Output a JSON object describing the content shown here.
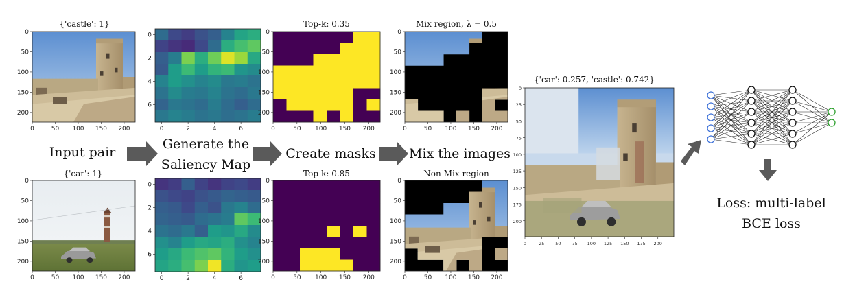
{
  "colors": {
    "viridis_dark": "#440154",
    "viridis_yellow": "#fde725",
    "arrow_gray": "#5a5a5a",
    "input_node_blue": "#3a6fd8",
    "output_node_green": "#2ca02c"
  },
  "panels": {
    "top_input": {
      "title": "{'castle': 1}",
      "content": "castle-photo"
    },
    "bottom_input": {
      "title": "{'car': 1}",
      "content": "car-field-photo"
    },
    "top_mask": {
      "title": "Top-k: 0.35"
    },
    "bottom_mask": {
      "title": "Top-k: 0.85"
    },
    "top_mix": {
      "title": "Mix region, λ = 0.5"
    },
    "bottom_mix": {
      "title": "Non-Mix region"
    },
    "result": {
      "title": "{'car': 0.257, 'castle': 0.742}"
    }
  },
  "axes": {
    "image_x_ticks": [
      "0",
      "50",
      "100",
      "150",
      "200"
    ],
    "image_y_ticks": [
      "0",
      "50",
      "100",
      "150",
      "200"
    ],
    "saliency_x_ticks": [
      "0",
      "2",
      "4",
      "6"
    ],
    "saliency_y_ticks": [
      "0",
      "2",
      "4",
      "6"
    ],
    "result_x_ticks": [
      "0",
      "25",
      "50",
      "75",
      "100",
      "125",
      "150",
      "175",
      "200"
    ],
    "result_y_ticks": [
      "0",
      "25",
      "50",
      "75",
      "100",
      "125",
      "150",
      "175",
      "200"
    ]
  },
  "steps": {
    "input_pair": "Input pair",
    "saliency_line1": "Generate the",
    "saliency_line2": "Saliency Map",
    "create_masks": "Create masks",
    "mix_images": "Mix the images"
  },
  "loss": {
    "line1": "Loss: multi-label",
    "line2": "BCE loss"
  },
  "saliency_top": [
    [
      0.35,
      0.22,
      0.18,
      0.25,
      0.3,
      0.45,
      0.58,
      0.62
    ],
    [
      0.2,
      0.15,
      0.12,
      0.22,
      0.35,
      0.62,
      0.7,
      0.75
    ],
    [
      0.3,
      0.42,
      0.8,
      0.62,
      0.78,
      0.95,
      0.85,
      0.6
    ],
    [
      0.28,
      0.55,
      0.68,
      0.55,
      0.65,
      0.68,
      0.52,
      0.48
    ],
    [
      0.45,
      0.55,
      0.5,
      0.45,
      0.48,
      0.4,
      0.42,
      0.38
    ],
    [
      0.38,
      0.48,
      0.42,
      0.4,
      0.45,
      0.38,
      0.35,
      0.4
    ],
    [
      0.32,
      0.4,
      0.38,
      0.35,
      0.42,
      0.35,
      0.3,
      0.35
    ],
    [
      0.4,
      0.45,
      0.42,
      0.38,
      0.4,
      0.36,
      0.38,
      0.42
    ]
  ],
  "saliency_bottom": [
    [
      0.15,
      0.18,
      0.3,
      0.2,
      0.15,
      0.2,
      0.22,
      0.18
    ],
    [
      0.25,
      0.22,
      0.2,
      0.25,
      0.28,
      0.32,
      0.3,
      0.28
    ],
    [
      0.3,
      0.28,
      0.22,
      0.3,
      0.25,
      0.4,
      0.45,
      0.35
    ],
    [
      0.32,
      0.3,
      0.28,
      0.35,
      0.38,
      0.42,
      0.75,
      0.68
    ],
    [
      0.38,
      0.35,
      0.4,
      0.3,
      0.55,
      0.52,
      0.6,
      0.48
    ],
    [
      0.5,
      0.45,
      0.55,
      0.6,
      0.58,
      0.62,
      0.5,
      0.45
    ],
    [
      0.55,
      0.6,
      0.68,
      0.72,
      0.75,
      0.65,
      0.55,
      0.5
    ],
    [
      0.58,
      0.62,
      0.7,
      0.8,
      0.98,
      0.62,
      0.52,
      0.55
    ]
  ],
  "mask_top": [
    [
      0,
      0,
      0,
      0,
      0,
      0,
      1,
      1
    ],
    [
      0,
      0,
      0,
      0,
      0,
      1,
      1,
      1
    ],
    [
      0,
      0,
      0,
      1,
      1,
      1,
      1,
      1
    ],
    [
      1,
      1,
      1,
      1,
      1,
      1,
      1,
      1
    ],
    [
      1,
      1,
      1,
      1,
      1,
      1,
      1,
      1
    ],
    [
      1,
      1,
      1,
      1,
      1,
      1,
      0,
      0
    ],
    [
      0,
      1,
      1,
      1,
      1,
      1,
      0,
      1
    ],
    [
      0,
      0,
      0,
      1,
      0,
      1,
      0,
      0
    ]
  ],
  "mask_bottom": [
    [
      0,
      0,
      0,
      0,
      0,
      0,
      0,
      0
    ],
    [
      0,
      0,
      0,
      0,
      0,
      0,
      0,
      0
    ],
    [
      0,
      0,
      0,
      0,
      0,
      0,
      0,
      0
    ],
    [
      0,
      0,
      0,
      0,
      0,
      0,
      0,
      0
    ],
    [
      0,
      0,
      0,
      0,
      1,
      0,
      1,
      0
    ],
    [
      0,
      0,
      0,
      0,
      0,
      0,
      0,
      0
    ],
    [
      0,
      0,
      1,
      1,
      1,
      0,
      0,
      0
    ],
    [
      0,
      0,
      1,
      1,
      1,
      1,
      0,
      0
    ]
  ],
  "network": {
    "layers": [
      5,
      6,
      6,
      2
    ]
  }
}
